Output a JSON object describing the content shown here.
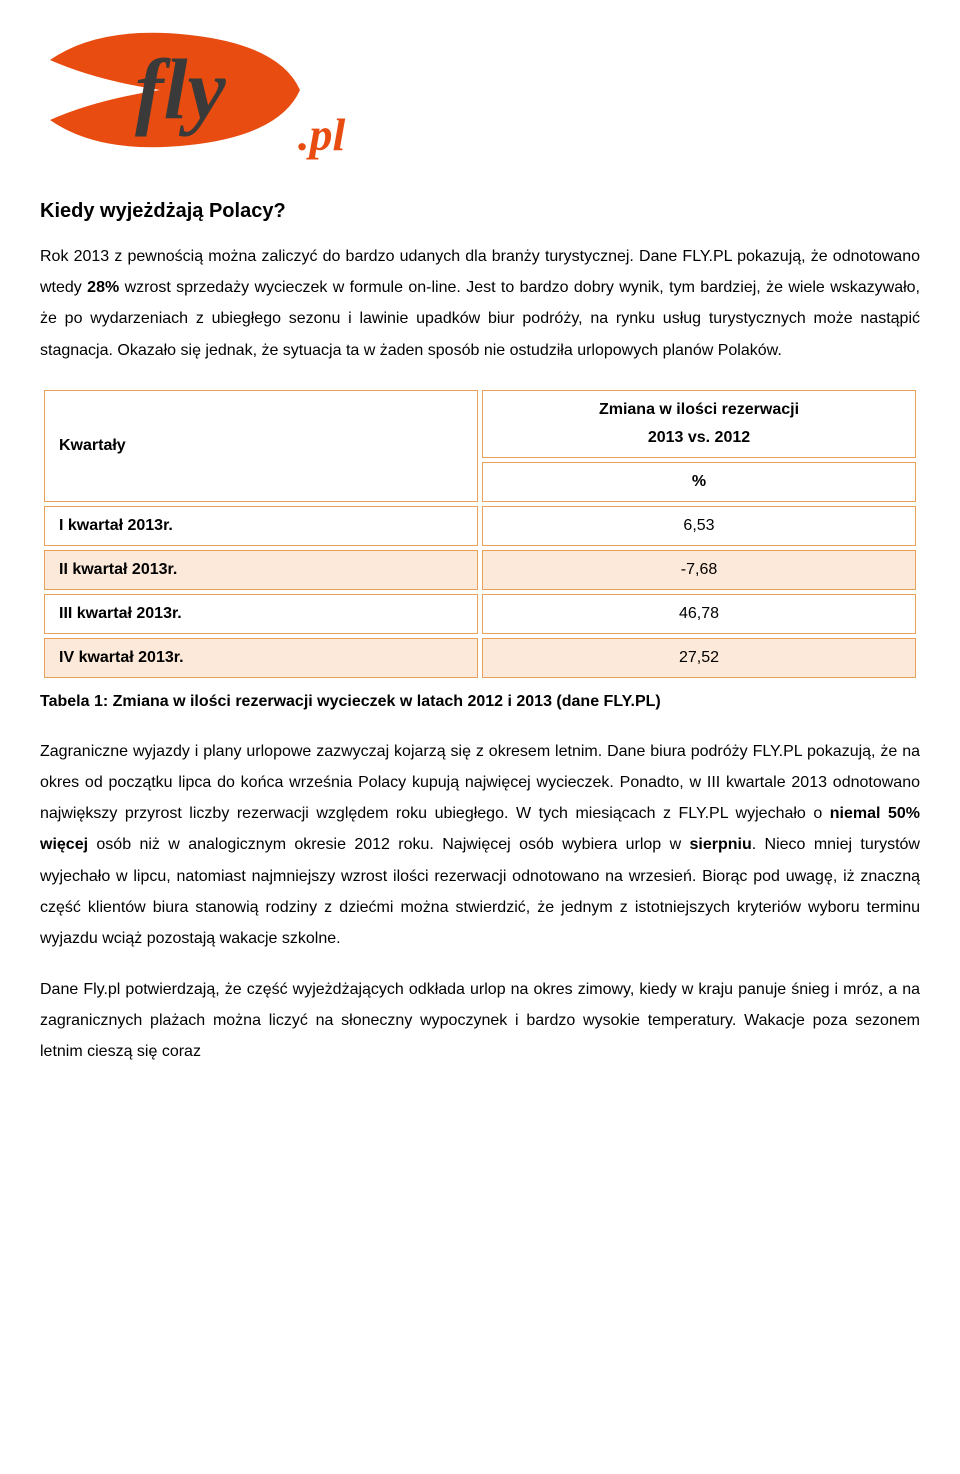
{
  "logo": {
    "text_main": "fly",
    "text_suffix": ".pl",
    "swoosh_color": "#e84c10",
    "text_main_color": "#3a3a3a",
    "text_suffix_color": "#e84c10"
  },
  "heading": "Kiedy wyjeżdżają Polacy?",
  "para1_parts": [
    {
      "t": "Rok 2013 z pewnością można zaliczyć do bardzo udanych dla branży turystycznej. Dane FLY.PL pokazują, że odnotowano wtedy ",
      "b": false
    },
    {
      "t": "28%",
      "b": true
    },
    {
      "t": " wzrost sprzedaży wycieczek w formule on-line. Jest to bardzo dobry wynik, tym bardziej, że wiele wskazywało, że po wydarzeniach z ubiegłego sezonu i lawinie upadków biur podróży, na rynku usług turystycznych może nastąpić stagnacja. Okazało się jednak, że sytuacja ta w żaden sposób nie ostudziła urlopowych planów Polaków.",
      "b": false
    }
  ],
  "table": {
    "type": "table",
    "border_color": "#e8a05a",
    "row_alt_bg": "#fde9d9",
    "row_bg": "#ffffff",
    "header_left": "Kwartały",
    "header_right_line1": "Zmiana w ilości rezerwacji",
    "header_right_line2": "2013 vs. 2012",
    "header_percent": "%",
    "rows": [
      {
        "label": "I kwartał 2013r.",
        "value": "6,53",
        "shade": false
      },
      {
        "label": "II kwartał 2013r.",
        "value": "-7,68",
        "shade": true
      },
      {
        "label": "III kwartał 2013r.",
        "value": "46,78",
        "shade": false
      },
      {
        "label": "IV kwartał 2013r.",
        "value": "27,52",
        "shade": true
      }
    ],
    "caption": "Tabela 1: Zmiana w ilości rezerwacji wycieczek w latach 2012 i 2013 (dane FLY.PL)"
  },
  "para2_parts": [
    {
      "t": "Zagraniczne wyjazdy i plany urlopowe zazwyczaj kojarzą się z okresem letnim. Dane biura podróży FLY.PL pokazują, że na okres od początku lipca do końca września Polacy kupują najwięcej wycieczek. Ponadto, w III kwartale 2013 odnotowano największy przyrost liczby rezerwacji względem roku ubiegłego. W tych miesiącach z FLY.PL wyjechało o ",
      "b": false
    },
    {
      "t": "niemal 50% więcej",
      "b": true
    },
    {
      "t": " osób niż w analogicznym okresie 2012 roku. Najwięcej osób wybiera urlop w ",
      "b": false
    },
    {
      "t": "sierpniu",
      "b": true
    },
    {
      "t": ". Nieco mniej turystów wyjechało w lipcu, natomiast najmniejszy wzrost ilości rezerwacji odnotowano na wrzesień. Biorąc pod uwagę, iż znaczną część klientów biura stanowią rodziny z dziećmi można stwierdzić, że jednym z istotniejszych kryteriów wyboru terminu wyjazdu wciąż pozostają wakacje szkolne.",
      "b": false
    }
  ],
  "para3": "Dane Fly.pl potwierdzają, że część wyjeżdżających odkłada urlop na okres zimowy, kiedy w kraju panuje śnieg i mróz, a na zagranicznych plażach można liczyć na słoneczny wypoczynek i bardzo wysokie temperatury. Wakacje poza sezonem letnim cieszą się coraz"
}
